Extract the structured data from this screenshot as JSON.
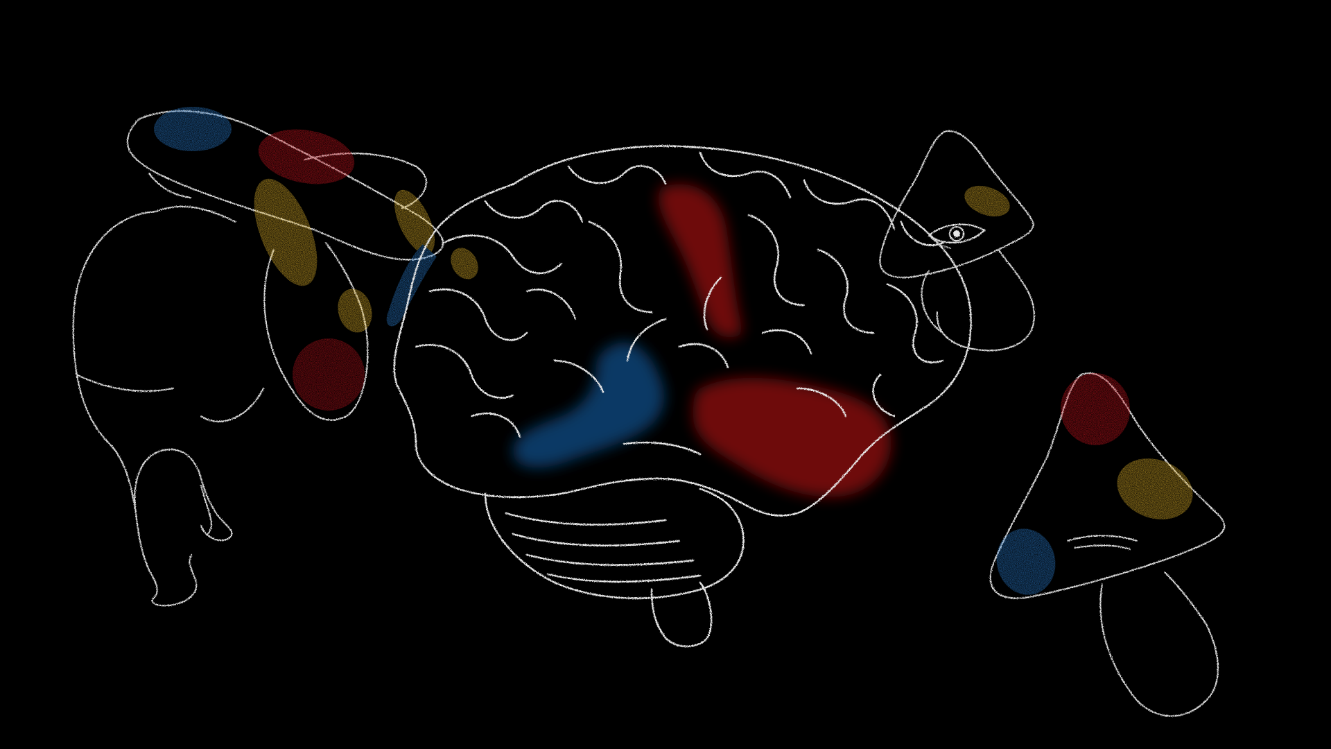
{
  "scene": {
    "background": "#000000",
    "palette": {
      "chalk": "#e6e6e6",
      "red": "#c8141e",
      "blue": "#1e6ab4",
      "yellow": "#e6b428",
      "dark_red": "#8c0a12",
      "dark_blue": "#0f4678"
    },
    "elements": [
      "brain-illustration",
      "crouching-figure",
      "spotted-mushroom-left",
      "mushroom-with-eye",
      "spotted-mushroom-right"
    ]
  }
}
